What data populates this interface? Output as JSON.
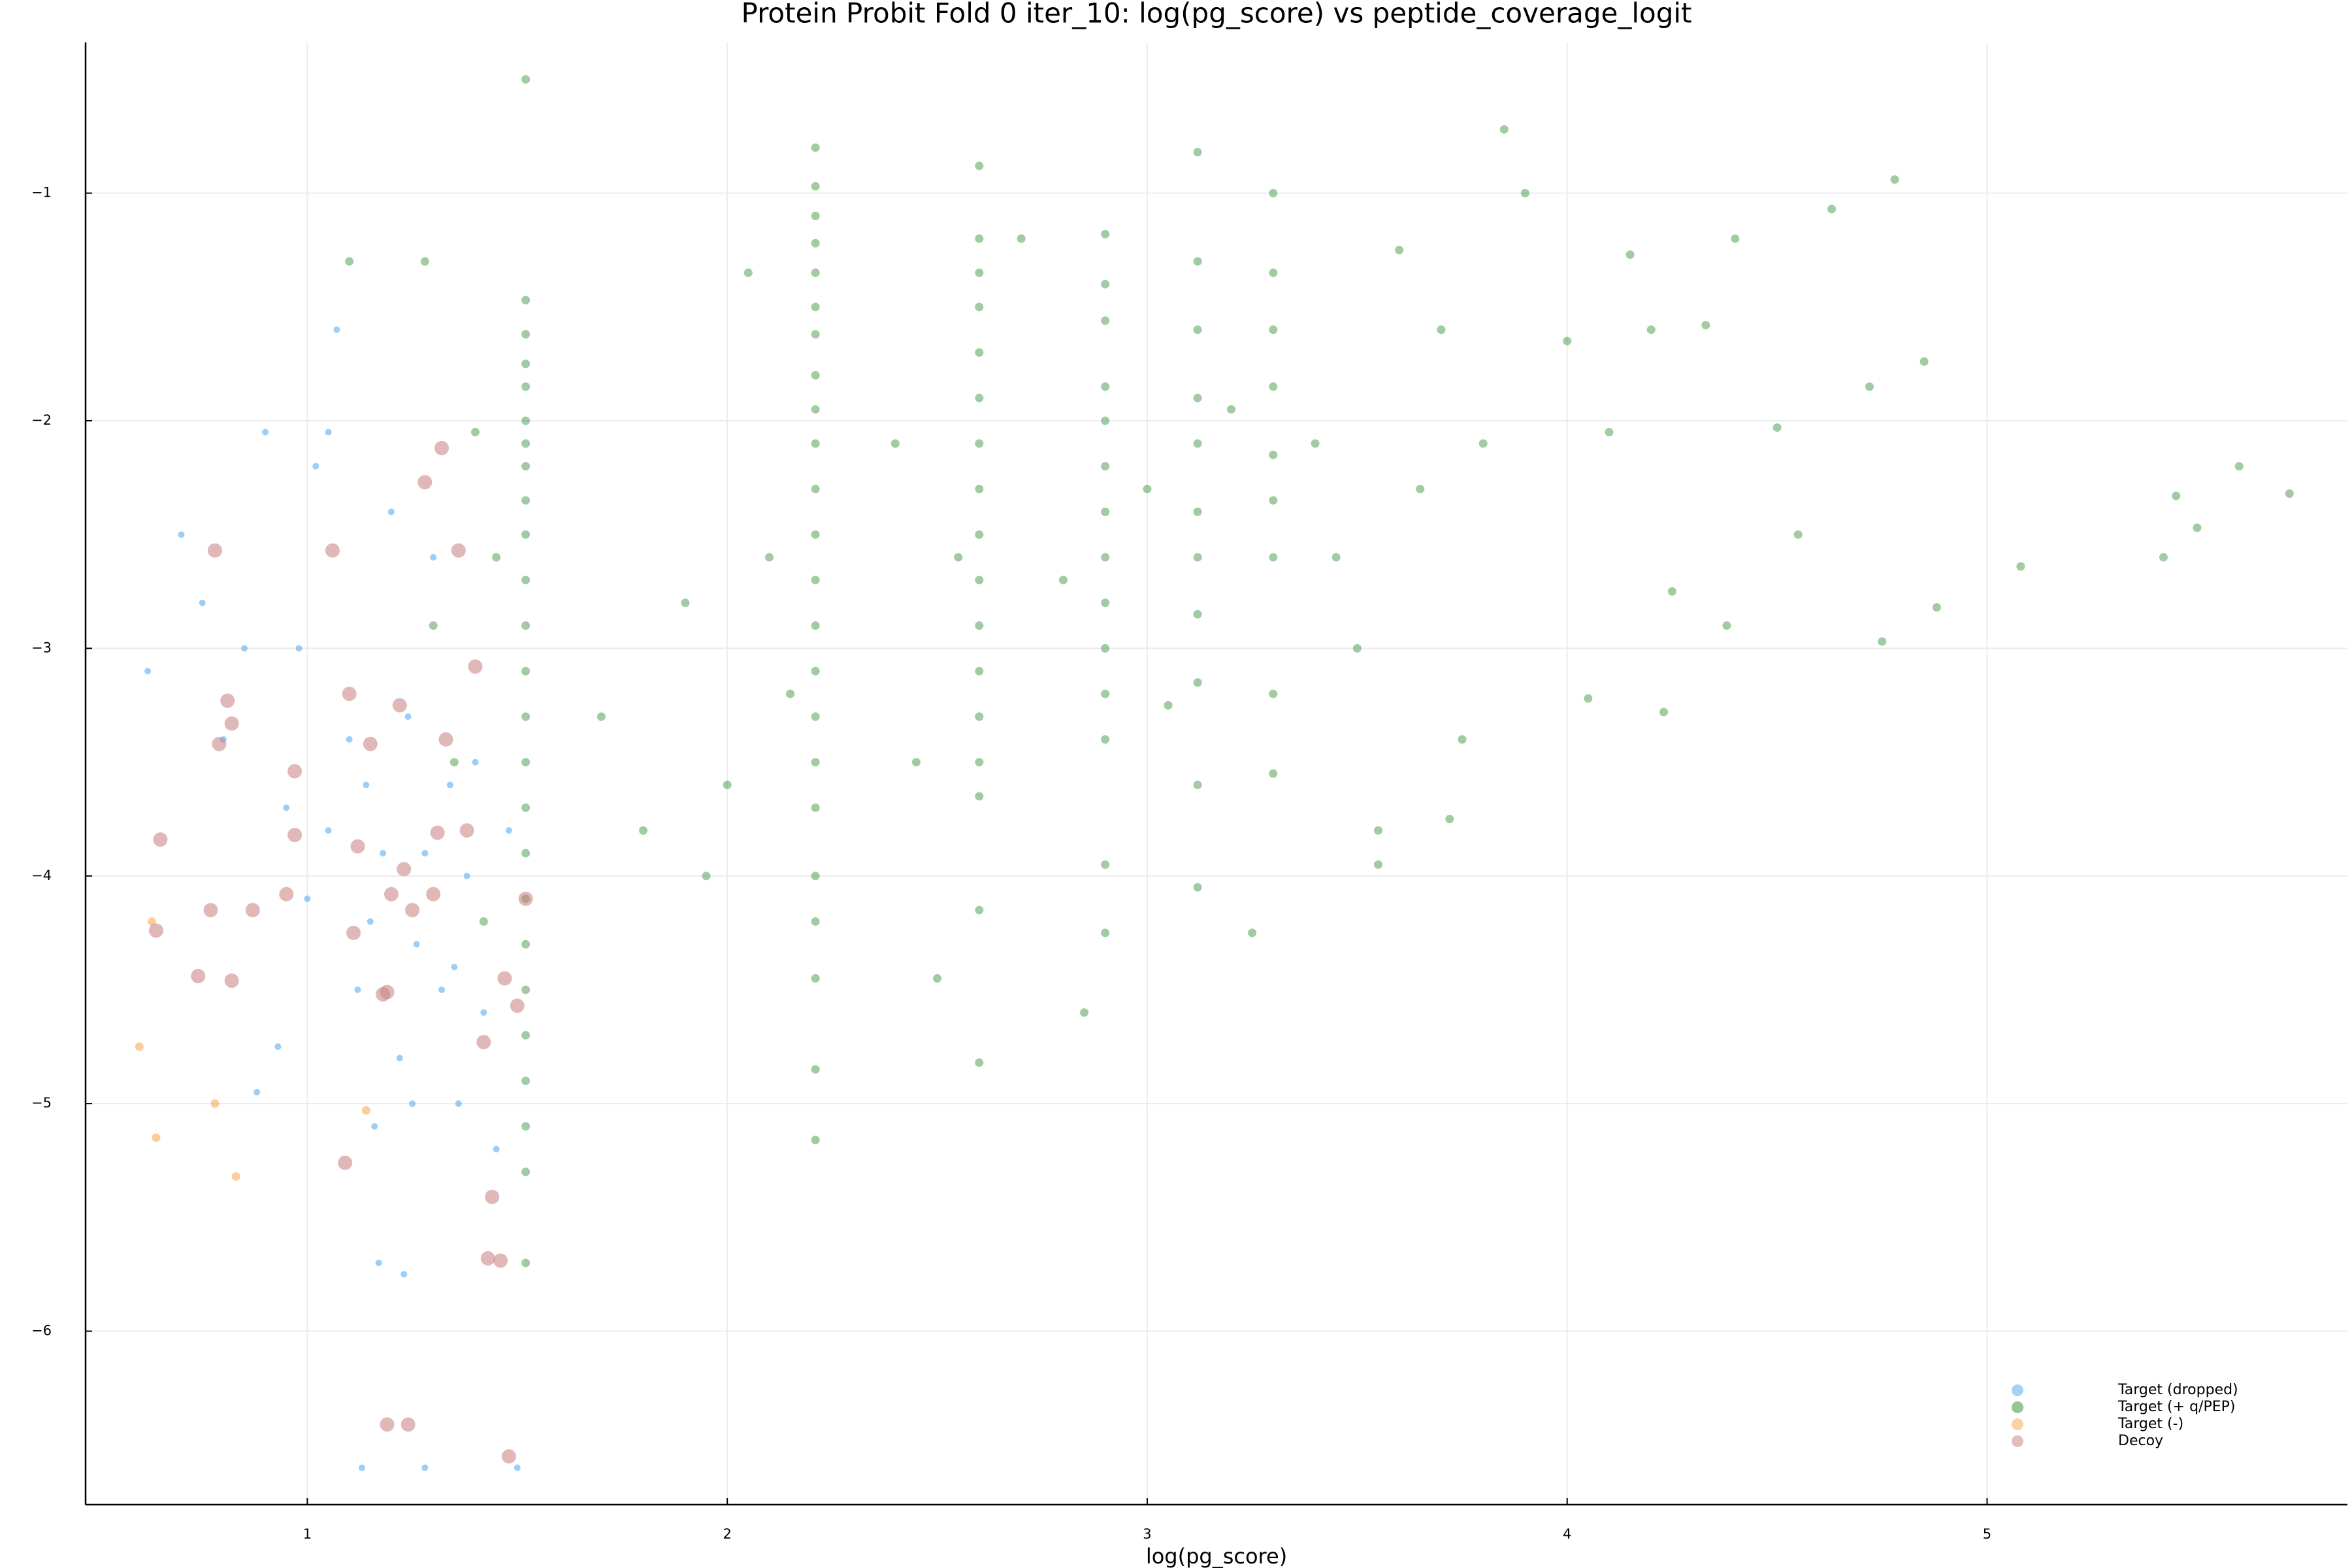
{
  "chart_data": {
    "type": "scatter",
    "title": "Protein Probit Fold 0 iter_10: log(pg_score) vs peptide_coverage_logit",
    "x_label": "log(pg_score)",
    "xlim": [
      0.472,
      5.858
    ],
    "ylim": [
      -6.762,
      -0.338
    ],
    "xticks": [
      1,
      2,
      3,
      4,
      5
    ],
    "yticks": [
      {
        "value": -1,
        "label": "−1"
      },
      {
        "value": -2,
        "label": "−2"
      },
      {
        "value": -3,
        "label": "−3"
      },
      {
        "value": -4,
        "label": "−4"
      },
      {
        "value": -5,
        "label": "−5"
      },
      {
        "value": -6,
        "label": "−6"
      }
    ],
    "grid": true,
    "legend": "bottom right",
    "series": [
      {
        "name": "Target (dropped)",
        "color": "#4da6f0",
        "x": [
          0.62,
          0.7,
          0.75,
          0.8,
          0.85,
          0.9,
          0.95,
          0.98,
          1.0,
          1.02,
          1.05,
          1.07,
          1.1,
          1.12,
          1.14,
          1.16,
          1.18,
          1.2,
          1.22,
          1.24,
          1.26,
          1.28,
          1.3,
          1.32,
          1.34,
          1.36,
          1.38,
          1.4,
          1.42,
          1.45,
          1.48,
          0.88,
          0.93,
          1.05,
          1.15,
          1.25,
          1.35,
          1.17,
          1.23,
          1.13,
          1.28,
          1.5
        ],
        "values": [
          -3.1,
          -2.5,
          -2.8,
          -3.4,
          -3.0,
          -2.05,
          -3.7,
          -3.0,
          -4.1,
          -2.2,
          -3.8,
          -1.6,
          -3.4,
          -4.5,
          -3.6,
          -5.1,
          -3.9,
          -2.4,
          -4.8,
          -3.3,
          -4.3,
          -3.9,
          -2.6,
          -4.5,
          -3.6,
          -5.0,
          -4.0,
          -3.5,
          -4.6,
          -5.2,
          -3.8,
          -4.95,
          -4.75,
          -2.05,
          -4.2,
          -5.0,
          -4.4,
          -5.7,
          -5.75,
          -6.6,
          -6.6,
          -6.6
        ]
      },
      {
        "name": "Target (+ q/PEP)",
        "color": "#2e8b2e",
        "x": [
          1.52,
          1.52,
          1.52,
          1.52,
          1.52,
          1.52,
          1.52,
          1.52,
          1.52,
          1.52,
          1.52,
          1.52,
          1.52,
          1.52,
          1.52,
          1.52,
          1.52,
          1.52,
          1.52,
          1.52,
          1.52,
          1.52,
          1.52,
          1.52,
          1.52,
          2.21,
          2.21,
          2.21,
          2.21,
          2.21,
          2.21,
          2.21,
          2.21,
          2.21,
          2.21,
          2.21,
          2.21,
          2.21,
          2.21,
          2.21,
          2.21,
          2.21,
          2.21,
          2.21,
          2.21,
          2.21,
          2.21,
          2.21,
          2.6,
          2.6,
          2.6,
          2.6,
          2.6,
          2.6,
          2.6,
          2.6,
          2.6,
          2.6,
          2.6,
          2.6,
          2.6,
          2.6,
          2.6,
          2.6,
          2.6,
          2.9,
          2.9,
          2.9,
          2.9,
          2.9,
          2.9,
          2.9,
          2.9,
          2.9,
          2.9,
          2.9,
          2.9,
          2.9,
          2.9,
          3.12,
          3.12,
          3.12,
          3.12,
          3.12,
          3.12,
          3.12,
          3.12,
          3.12,
          3.12,
          3.12,
          3.3,
          3.3,
          3.3,
          3.3,
          3.3,
          3.3,
          3.3,
          3.3,
          3.3,
          1.3,
          1.35,
          1.4,
          1.45,
          1.42,
          1.1,
          1.28,
          1.7,
          1.8,
          1.9,
          1.95,
          2.0,
          2.05,
          2.1,
          2.15,
          2.4,
          2.45,
          2.5,
          2.55,
          2.7,
          2.8,
          2.85,
          3.0,
          3.05,
          3.2,
          3.25,
          3.4,
          3.45,
          3.5,
          3.55,
          3.6,
          3.65,
          3.7,
          3.75,
          3.8,
          3.85,
          3.9,
          4.0,
          4.05,
          4.1,
          4.2,
          4.25,
          4.33,
          4.38,
          4.5,
          4.55,
          4.63,
          4.72,
          4.75,
          4.78,
          4.85,
          4.88,
          5.08,
          5.42,
          5.45,
          5.6,
          5.72,
          5.5,
          4.4,
          4.15,
          3.72,
          3.55,
          4.23
        ],
        "values": [
          -0.5,
          -1.47,
          -1.62,
          -1.75,
          -1.85,
          -2.0,
          -2.1,
          -2.2,
          -2.35,
          -2.5,
          -2.7,
          -2.9,
          -3.1,
          -3.3,
          -3.5,
          -3.7,
          -3.9,
          -4.1,
          -4.3,
          -4.5,
          -4.7,
          -4.9,
          -5.1,
          -5.3,
          -5.7,
          -0.8,
          -0.97,
          -1.1,
          -1.22,
          -1.35,
          -1.5,
          -1.62,
          -1.8,
          -1.95,
          -2.1,
          -2.3,
          -2.5,
          -2.7,
          -2.9,
          -3.1,
          -3.3,
          -3.5,
          -3.7,
          -4.0,
          -4.2,
          -4.45,
          -4.85,
          -5.16,
          -0.88,
          -1.2,
          -1.35,
          -1.5,
          -1.7,
          -1.9,
          -2.1,
          -2.3,
          -2.5,
          -2.7,
          -2.9,
          -3.1,
          -3.3,
          -3.5,
          -3.65,
          -4.15,
          -4.82,
          -1.18,
          -1.4,
          -1.56,
          -1.85,
          -2.0,
          -2.2,
          -2.4,
          -2.6,
          -2.8,
          -3.0,
          -3.2,
          -3.4,
          -3.95,
          -4.25,
          -0.82,
          -1.3,
          -1.6,
          -1.9,
          -2.1,
          -2.4,
          -2.6,
          -2.85,
          -3.15,
          -3.6,
          -4.05,
          -1.0,
          -1.35,
          -1.6,
          -1.85,
          -2.15,
          -2.35,
          -2.6,
          -3.2,
          -3.55,
          -2.9,
          -3.5,
          -2.05,
          -2.6,
          -4.2,
          -1.3,
          -1.3,
          -3.3,
          -3.8,
          -2.8,
          -4.0,
          -3.6,
          -1.35,
          -2.6,
          -3.2,
          -2.1,
          -3.5,
          -4.45,
          -2.6,
          -1.2,
          -2.7,
          -4.6,
          -2.3,
          -3.25,
          -1.95,
          -4.25,
          -2.1,
          -2.6,
          -3.0,
          -3.95,
          -1.25,
          -2.3,
          -1.6,
          -3.4,
          -2.1,
          -0.72,
          -1.0,
          -1.65,
          -3.22,
          -2.05,
          -1.6,
          -2.75,
          -1.58,
          -2.9,
          -2.03,
          -2.5,
          -1.07,
          -1.85,
          -2.97,
          -0.94,
          -1.74,
          -2.82,
          -2.64,
          -2.6,
          -2.33,
          -2.2,
          -2.32,
          -2.47,
          -1.2,
          -1.27,
          -3.75,
          -3.8,
          -3.28
        ]
      },
      {
        "name": "Target (-)",
        "color": "#f5a447",
        "x": [
          0.6,
          0.64,
          0.78,
          0.83,
          1.14,
          0.63
        ],
        "values": [
          -4.75,
          -5.15,
          -5.0,
          -5.32,
          -5.03,
          -4.2
        ]
      },
      {
        "name": "Decoy",
        "color": "#c97d7d",
        "x": [
          0.65,
          0.64,
          0.74,
          0.77,
          0.79,
          0.81,
          0.82,
          0.82,
          0.87,
          0.95,
          0.97,
          0.97,
          1.1,
          1.11,
          1.12,
          1.15,
          1.18,
          1.19,
          1.2,
          1.22,
          1.23,
          1.25,
          1.28,
          1.3,
          1.31,
          1.33,
          1.36,
          1.38,
          1.4,
          1.42,
          1.44,
          1.47,
          1.5,
          1.52,
          1.09,
          1.19,
          1.24,
          1.32,
          1.43,
          1.46,
          1.48,
          0.78,
          1.06
        ],
        "values": [
          -3.84,
          -4.24,
          -4.44,
          -4.15,
          -3.42,
          -3.23,
          -3.33,
          -4.46,
          -4.15,
          -4.08,
          -3.54,
          -3.82,
          -3.2,
          -4.25,
          -3.87,
          -3.42,
          -4.52,
          -4.51,
          -4.08,
          -3.25,
          -3.97,
          -4.15,
          -2.27,
          -4.08,
          -3.81,
          -3.4,
          -2.57,
          -3.8,
          -3.08,
          -4.73,
          -5.41,
          -4.45,
          -4.57,
          -4.1,
          -5.26,
          -6.41,
          -6.41,
          -2.12,
          -5.68,
          -5.69,
          -6.55,
          -2.57,
          -2.57
        ]
      }
    ]
  }
}
